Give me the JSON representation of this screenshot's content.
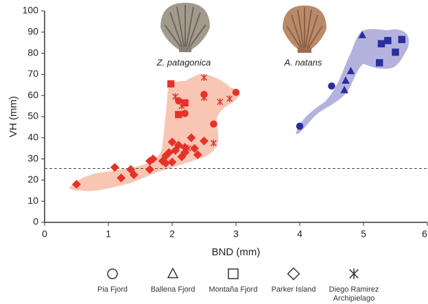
{
  "chart_data": {
    "type": "scatter",
    "xlabel": "BND (mm)",
    "ylabel": "VH (mm)",
    "xlim": [
      0,
      6
    ],
    "xticks": [
      0,
      1,
      2,
      3,
      4,
      5,
      6
    ],
    "ylim": [
      0,
      100
    ],
    "yticks": [
      0,
      10,
      20,
      30,
      40,
      50,
      60,
      70,
      80,
      90,
      100
    ],
    "hline": 25.5,
    "legend": [
      {
        "name": "Pia Fjord",
        "marker": "circle"
      },
      {
        "name": "Ballena Fjord",
        "marker": "triangle"
      },
      {
        "name": "Montaña Fjord",
        "marker": "square"
      },
      {
        "name": "Parker Island",
        "marker": "diamond"
      },
      {
        "name": "Diego Ramirez Archipielago",
        "marker": "asterisk"
      }
    ],
    "groups": [
      {
        "label": "Z. patagonica",
        "color": "#e5332a",
        "fill": "#f9c6b4",
        "series": [
          {
            "site": 0,
            "x": [
              2.1,
              2.2,
              2.5,
              2.65,
              3.0
            ],
            "y": [
              57.5,
              51.5,
              60.5,
              46.5,
              61.5
            ]
          },
          {
            "site": 2,
            "x": [
              1.98,
              2.1,
              2.2
            ],
            "y": [
              65.5,
              51,
              56.5
            ]
          },
          {
            "site": 3,
            "x": [
              0.5,
              1.1,
              1.2,
              1.35,
              1.4,
              1.65,
              1.65,
              1.7,
              1.85,
              1.9,
              1.95,
              2.0,
              2.0,
              2.05,
              2.1,
              2.15,
              2.2,
              2.2,
              2.3,
              2.35,
              2.4,
              2.5,
              1.9
            ],
            "y": [
              18,
              26,
              21,
              25,
              22.5,
              25,
              29,
              30,
              29,
              31.5,
              33,
              28.5,
              38,
              34,
              36.5,
              31,
              33,
              35.5,
              40,
              35,
              32,
              38.5,
              28
            ]
          },
          {
            "site": 4,
            "x": [
              2.05,
              2.15,
              2.5,
              2.5,
              2.75,
              2.9,
              2.65,
              2.25
            ],
            "y": [
              59.5,
              55,
              68.5,
              59,
              57,
              58.5,
              37.5,
              35
            ]
          }
        ]
      },
      {
        "label": "A. natans",
        "color": "#2b2e9c",
        "fill": "#b4b3de",
        "series": [
          {
            "site": 0,
            "x": [
              4.0,
              4.5
            ],
            "y": [
              45.5,
              64.5
            ]
          },
          {
            "site": 1,
            "x": [
              4.7,
              4.72,
              4.8,
              4.98
            ],
            "y": [
              62.5,
              67,
              71.5,
              88.5
            ]
          },
          {
            "site": 2,
            "x": [
              5.25,
              5.28,
              5.38,
              5.5,
              5.6
            ],
            "y": [
              75.5,
              84.5,
              86,
              80.5,
              86.5
            ]
          }
        ]
      }
    ]
  }
}
